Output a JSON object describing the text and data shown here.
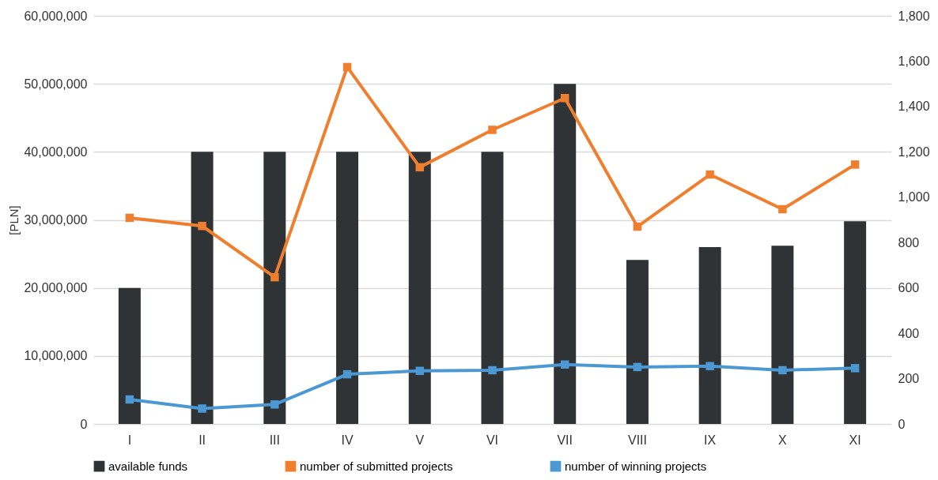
{
  "chart_data": {
    "type": "bar",
    "ylabel": "[PLN]",
    "categories": [
      "I",
      "II",
      "III",
      "IV",
      "V",
      "VI",
      "VII",
      "VIII",
      "IX",
      "X",
      "XI"
    ],
    "series": [
      {
        "name": "available funds",
        "color": "#2f3335",
        "values": [
          20000000,
          40000000,
          40000000,
          40000000,
          40000000,
          40000000,
          50000000,
          24100000,
          26000000,
          26200000,
          29800000
        ]
      },
      {
        "name": "number of submitted projects",
        "type": "line",
        "axis": "y2",
        "color": "#ef7f2e",
        "values": [
          909,
          873,
          647,
          1574,
          1132,
          1297,
          1437,
          870,
          1100,
          947,
          1144
        ]
      },
      {
        "name": "number of winning projects",
        "type": "line",
        "axis": "y2",
        "color": "#4b98d2",
        "values": [
          108,
          68,
          86,
          219,
          234,
          237,
          262,
          251,
          255,
          237,
          246
        ]
      }
    ],
    "ylim": [
      0,
      60000000
    ],
    "yticks": [
      0,
      {
        "value": 10000000,
        "label": "10,000,000"
      },
      {
        "value": 20000000,
        "label": "20,000,000"
      },
      {
        "value": 30000000,
        "label": "30,000,000"
      },
      {
        "value": 40000000,
        "label": "40,000,000"
      },
      {
        "value": 50000000,
        "label": "50,000,000"
      },
      {
        "value": 60000000,
        "label": "60,000,000"
      }
    ],
    "y2lim": [
      0,
      1800
    ],
    "y2ticks": [
      0,
      200,
      400,
      600,
      800,
      {
        "value": 1000,
        "label": "1,000"
      },
      {
        "value": 1200,
        "label": "1,200"
      },
      {
        "value": 1400,
        "label": "1,400"
      },
      {
        "value": 1600,
        "label": "1,600"
      },
      {
        "value": 1800,
        "label": "1,800"
      }
    ],
    "grid": "y",
    "legend": "bottom",
    "marker": "square",
    "line_style": "solid"
  }
}
